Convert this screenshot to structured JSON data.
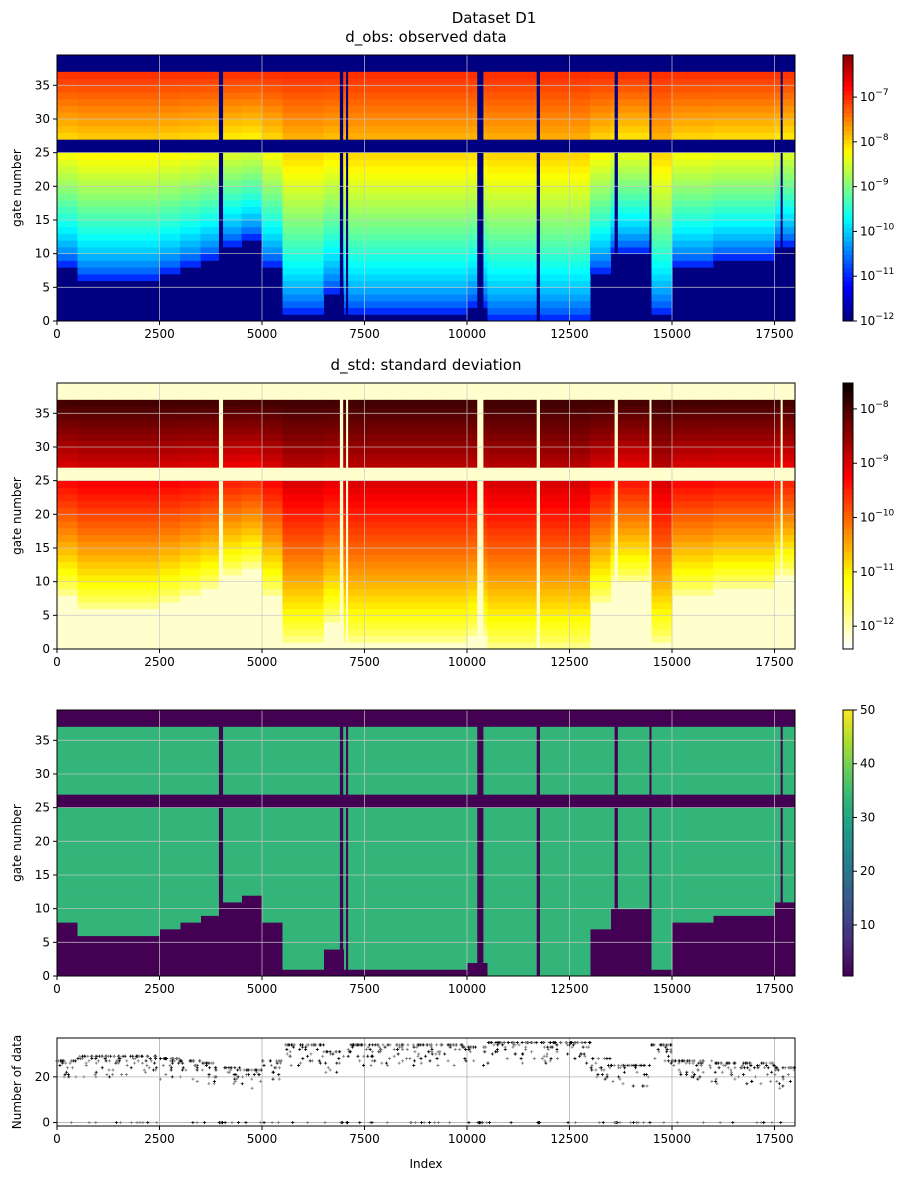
{
  "figure": {
    "suptitle": "Dataset D1"
  },
  "chart_data": [
    {
      "type": "heatmap",
      "title": "d_obs: observed data",
      "ylabel": "gate number",
      "xlim": [
        0,
        18000
      ],
      "ylim": [
        0,
        39.5
      ],
      "xticks": [
        0,
        2500,
        5000,
        7500,
        10000,
        12500,
        15000,
        17500
      ],
      "yticks": [
        0,
        5,
        10,
        15,
        20,
        25,
        30,
        35
      ],
      "colormap": "jet",
      "color_scale": "log",
      "colorbar_range": [
        1e-12,
        8.7e-07
      ],
      "colorbar_ticks": [
        "10^-7",
        "10^-8",
        "10^-9",
        "10^-10",
        "10^-11",
        "10^-12"
      ],
      "value_range_at_lowest_gate": 1e-11,
      "value_range_at_top_gate": 1e-07,
      "grid": true
    },
    {
      "type": "heatmap",
      "title": "d_std: standard deviation",
      "ylabel": "gate number",
      "xlim": [
        0,
        18000
      ],
      "ylim": [
        0,
        39.5
      ],
      "xticks": [
        0,
        2500,
        5000,
        7500,
        10000,
        12500,
        15000,
        17500
      ],
      "yticks": [
        0,
        5,
        10,
        15,
        20,
        25,
        30,
        35
      ],
      "colormap": "hot_r",
      "color_scale": "log",
      "colorbar_range": [
        3.8e-13,
        3e-08
      ],
      "colorbar_ticks": [
        "10^-8",
        "10^-9",
        "10^-10",
        "10^-11",
        "10^-12"
      ],
      "grid": true
    },
    {
      "type": "heatmap",
      "title": "",
      "ylabel": "gate number",
      "xlim": [
        0,
        18000
      ],
      "ylim": [
        0,
        39.5
      ],
      "xticks": [
        0,
        2500,
        5000,
        7500,
        10000,
        12500,
        15000,
        17500
      ],
      "yticks": [
        0,
        5,
        10,
        15,
        20,
        25,
        30,
        35
      ],
      "colormap": "viridis",
      "color_scale": "linear",
      "colorbar_range": [
        0.5,
        50
      ],
      "colorbar_ticks": [
        "10",
        "20",
        "30",
        "40",
        "50"
      ],
      "valid_value": 33,
      "grid": true
    },
    {
      "type": "scatter",
      "title": "",
      "xlabel": "Index",
      "ylabel": "Number of data",
      "xlim": [
        0,
        18000
      ],
      "ylim": [
        -1.5,
        37
      ],
      "xticks": [
        0,
        2500,
        5000,
        7500,
        10000,
        12500,
        15000,
        17500
      ],
      "yticks": [
        0,
        20
      ],
      "grid": true
    }
  ],
  "profile": {
    "bin_width": 500,
    "bin_start": [
      0,
      500,
      1000,
      1500,
      2000,
      2500,
      3000,
      3500,
      4000,
      4500,
      5000,
      5500,
      6000,
      6500,
      7000,
      7500,
      8000,
      8500,
      9000,
      9500,
      10000,
      10500,
      11000,
      11500,
      12000,
      12500,
      13000,
      13500,
      14000,
      14500,
      15000,
      15500,
      16000,
      16500,
      17000,
      17500
    ],
    "lowest_valid_gate": [
      8,
      6,
      6,
      6,
      6,
      7,
      8,
      9,
      11,
      12,
      8,
      1,
      1,
      4,
      1,
      1,
      1,
      1,
      1,
      1,
      2,
      0,
      0,
      0,
      0,
      0,
      7,
      10,
      10,
      1,
      8,
      8,
      9,
      9,
      9,
      11
    ],
    "number_of_data": [
      27,
      29,
      29,
      29,
      29,
      28,
      27,
      26,
      24,
      23,
      27,
      34,
      34,
      31,
      34,
      34,
      34,
      34,
      34,
      34,
      33,
      35,
      35,
      35,
      35,
      35,
      28,
      25,
      25,
      34,
      27,
      27,
      26,
      26,
      26,
      24
    ],
    "no_data_ranges": [
      [
        3950,
        4050
      ],
      [
        6900,
        6980
      ],
      [
        7050,
        7100
      ],
      [
        10250,
        10400
      ],
      [
        11700,
        11780
      ],
      [
        13600,
        13680
      ],
      [
        14450,
        14500
      ],
      [
        17650,
        17700
      ]
    ],
    "empty_gate_band": [
      25,
      27
    ],
    "top_gate": 37
  }
}
